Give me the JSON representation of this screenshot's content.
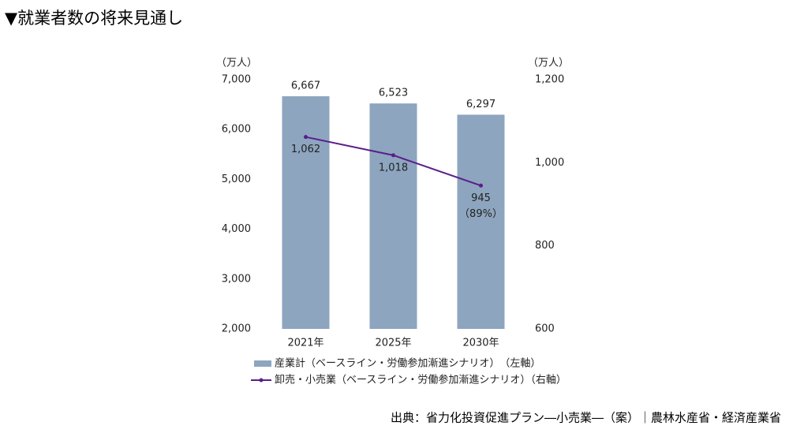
{
  "chart_data": {
    "type": "bar",
    "title": "▼就業者数の将来見通し",
    "y_unit": "（万人）",
    "y2_unit": "（万人）",
    "categories": [
      "2021年",
      "2025年",
      "2030年"
    ],
    "series": [
      {
        "name": "産業計（ベースライン・労働参加漸進シナリオ）　（左軸）",
        "color": "#8da5bf",
        "values": [
          6667,
          6523,
          6297
        ],
        "value_labels": [
          "6,667",
          "6,523",
          "6,297"
        ]
      },
      {
        "name": "卸売・小売業（ベースライン・労働参加漸進シナリオ）（右軸）",
        "type": "line",
        "axis": "y2",
        "color": "#5a1e8a",
        "values": [
          1062,
          1018,
          945
        ],
        "value_labels": [
          "1,062",
          "1,018",
          "945"
        ]
      }
    ],
    "annotation": "（89%）",
    "ylim": [
      2000,
      7000
    ],
    "yticks": [
      {
        "value": 2000,
        "label": "2,000"
      },
      {
        "value": 3000,
        "label": "3,000"
      },
      {
        "value": 4000,
        "label": "4,000"
      },
      {
        "value": 5000,
        "label": "5,000"
      },
      {
        "value": 6000,
        "label": "6,000"
      },
      {
        "value": 7000,
        "label": "7,000"
      }
    ],
    "y2lim": [
      600,
      1200
    ],
    "y2ticks": [
      600,
      800,
      {
        "value": 1000,
        "label": "1,000"
      },
      {
        "value": 1200,
        "label": "1,200"
      }
    ],
    "grid": false,
    "source": "出典：省力化投資促進プラン―小売業―（案）｜農林水産省・経済産業省"
  }
}
